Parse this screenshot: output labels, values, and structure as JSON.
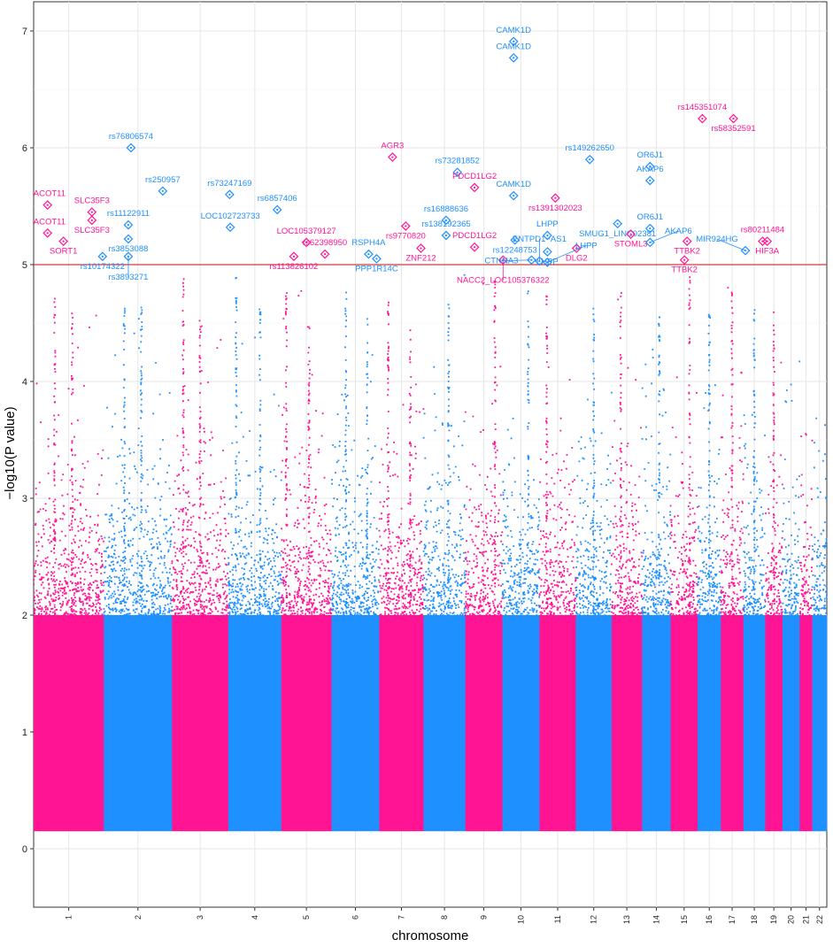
{
  "chart_data": {
    "type": "scatter",
    "title": "",
    "xlabel": "chromosome",
    "ylabel": "−log10(P value)",
    "ylim": [
      -0.5,
      7.25
    ],
    "yticks": [
      "0",
      "1",
      "2",
      "3",
      "4",
      "5",
      "6",
      "7"
    ],
    "grid": true,
    "significance_threshold": 5,
    "colors": {
      "odd_chromosome": "#ff1493",
      "even_chromosome": "#1e90ff",
      "threshold_line": "#d23c3c"
    },
    "chromosomes": [
      {
        "label": "1",
        "start": 0,
        "end": 1.06,
        "color": "#ff1493"
      },
      {
        "label": "2",
        "start": 1.06,
        "end": 2.09,
        "color": "#1e90ff"
      },
      {
        "label": "3",
        "start": 2.09,
        "end": 2.94,
        "color": "#ff1493"
      },
      {
        "label": "4",
        "start": 2.94,
        "end": 3.74,
        "color": "#1e90ff"
      },
      {
        "label": "5",
        "start": 3.74,
        "end": 4.5,
        "color": "#ff1493"
      },
      {
        "label": "6",
        "start": 4.5,
        "end": 5.22,
        "color": "#1e90ff"
      },
      {
        "label": "7",
        "start": 5.22,
        "end": 5.89,
        "color": "#ff1493"
      },
      {
        "label": "8",
        "start": 5.89,
        "end": 6.52,
        "color": "#1e90ff"
      },
      {
        "label": "9",
        "start": 6.52,
        "end": 7.08,
        "color": "#ff1493"
      },
      {
        "label": "10",
        "start": 7.08,
        "end": 7.64,
        "color": "#1e90ff"
      },
      {
        "label": "11",
        "start": 7.64,
        "end": 8.19,
        "color": "#ff1493"
      },
      {
        "label": "12",
        "start": 8.19,
        "end": 8.73,
        "color": "#1e90ff"
      },
      {
        "label": "13",
        "start": 8.73,
        "end": 9.19,
        "color": "#ff1493"
      },
      {
        "label": "14",
        "start": 9.19,
        "end": 9.62,
        "color": "#1e90ff"
      },
      {
        "label": "15",
        "start": 9.62,
        "end": 10.03,
        "color": "#ff1493"
      },
      {
        "label": "16",
        "start": 10.03,
        "end": 10.38,
        "color": "#1e90ff"
      },
      {
        "label": "17",
        "start": 10.38,
        "end": 10.72,
        "color": "#ff1493"
      },
      {
        "label": "18",
        "start": 10.72,
        "end": 11.05,
        "color": "#1e90ff"
      },
      {
        "label": "19",
        "start": 11.05,
        "end": 11.31,
        "color": "#ff1493"
      },
      {
        "label": "20",
        "start": 11.31,
        "end": 11.57,
        "color": "#1e90ff"
      },
      {
        "label": "21",
        "start": 11.57,
        "end": 11.76,
        "color": "#ff1493"
      },
      {
        "label": "22",
        "start": 11.76,
        "end": 11.98,
        "color": "#1e90ff"
      }
    ],
    "peaks": [
      {
        "chr": "1",
        "pos": 0.3,
        "y": 4.8
      },
      {
        "chr": "1",
        "pos": 0.55,
        "y": 4.6
      },
      {
        "chr": "2",
        "pos": 0.3,
        "y": 4.9
      },
      {
        "chr": "2",
        "pos": 0.55,
        "y": 4.7
      },
      {
        "chr": "3",
        "pos": 0.2,
        "y": 4.9
      },
      {
        "chr": "3",
        "pos": 0.5,
        "y": 4.6
      },
      {
        "chr": "4",
        "pos": 0.15,
        "y": 4.9
      },
      {
        "chr": "4",
        "pos": 0.6,
        "y": 4.7
      },
      {
        "chr": "5",
        "pos": 0.1,
        "y": 4.8
      },
      {
        "chr": "5",
        "pos": 0.55,
        "y": 4.5
      },
      {
        "chr": "6",
        "pos": 0.3,
        "y": 4.8
      },
      {
        "chr": "6",
        "pos": 0.75,
        "y": 4.6
      },
      {
        "chr": "7",
        "pos": 0.2,
        "y": 4.7
      },
      {
        "chr": "7",
        "pos": 0.7,
        "y": 4.5
      },
      {
        "chr": "8",
        "pos": 0.6,
        "y": 4.7
      },
      {
        "chr": "9",
        "pos": 0.8,
        "y": 4.9
      },
      {
        "chr": "10",
        "pos": 0.7,
        "y": 4.8
      },
      {
        "chr": "11",
        "pos": 0.2,
        "y": 4.9
      },
      {
        "chr": "12",
        "pos": 0.5,
        "y": 4.7
      },
      {
        "chr": "13",
        "pos": 0.3,
        "y": 4.9
      },
      {
        "chr": "14",
        "pos": 0.6,
        "y": 4.6
      },
      {
        "chr": "15",
        "pos": 0.7,
        "y": 4.9
      },
      {
        "chr": "16",
        "pos": 0.5,
        "y": 4.6
      },
      {
        "chr": "17",
        "pos": 0.5,
        "y": 4.8
      },
      {
        "chr": "18",
        "pos": 0.5,
        "y": 4.7
      },
      {
        "chr": "19",
        "pos": 0.5,
        "y": 4.6
      }
    ],
    "annotations": [
      {
        "label": "CAMK1D",
        "x": 7.25,
        "y": 6.91,
        "color": "#1e90ff"
      },
      {
        "label": "CAMK1D",
        "x": 7.25,
        "y": 6.77,
        "color": "#1e90ff"
      },
      {
        "label": "rs145351074",
        "x": 10.1,
        "y": 6.25,
        "color": "#ff1493"
      },
      {
        "label": "rs58352591",
        "x": 10.57,
        "y": 6.25,
        "color": "#ff1493"
      },
      {
        "label": "rs76806574",
        "x": 1.47,
        "y": 6.0,
        "color": "#1e90ff"
      },
      {
        "label": "AGR3",
        "x": 5.42,
        "y": 5.92,
        "color": "#ff1493"
      },
      {
        "label": "rs149262650",
        "x": 8.4,
        "y": 5.9,
        "color": "#1e90ff"
      },
      {
        "label": "OR6J1",
        "x": 9.31,
        "y": 5.84,
        "color": "#1e90ff"
      },
      {
        "label": "rs73281852",
        "x": 6.4,
        "y": 5.79,
        "color": "#1e90ff"
      },
      {
        "label": "AKAP6",
        "x": 9.31,
        "y": 5.72,
        "color": "#1e90ff"
      },
      {
        "label": "PDCD1LG2",
        "x": 6.66,
        "y": 5.66,
        "color": "#ff1493"
      },
      {
        "label": "rs250957",
        "x": 1.95,
        "y": 5.63,
        "color": "#1e90ff"
      },
      {
        "label": "rs73247169",
        "x": 2.96,
        "y": 5.6,
        "color": "#1e90ff"
      },
      {
        "label": "CAMK1D",
        "x": 7.25,
        "y": 5.59,
        "color": "#1e90ff"
      },
      {
        "label": "rs1391302023",
        "x": 7.88,
        "y": 5.57,
        "color": "#ff1493"
      },
      {
        "label": "ACOT11",
        "x": 0.21,
        "y": 5.51,
        "color": "#ff1493"
      },
      {
        "label": "rs6857406",
        "x": 3.68,
        "y": 5.47,
        "color": "#1e90ff"
      },
      {
        "label": "SLC35F3",
        "x": 0.88,
        "y": 5.45,
        "color": "#ff1493"
      },
      {
        "label": "SLC35F3",
        "x": 0.88,
        "y": 5.38,
        "color": "#ff1493"
      },
      {
        "label": "rs16888636",
        "x": 6.23,
        "y": 5.38,
        "color": "#1e90ff"
      },
      {
        "label": "rs11122911",
        "x": 1.43,
        "y": 5.34,
        "color": "#1e90ff"
      },
      {
        "label": "SMUG1_LINC02381",
        "x": 8.82,
        "y": 5.35,
        "color": "#1e90ff"
      },
      {
        "label": "rs9770820",
        "x": 5.62,
        "y": 5.33,
        "color": "#ff1493"
      },
      {
        "label": "LOC102723733",
        "x": 2.97,
        "y": 5.32,
        "color": "#1e90ff"
      },
      {
        "label": "OR6J1",
        "x": 9.31,
        "y": 5.31,
        "color": "#1e90ff"
      },
      {
        "label": "ACOT11",
        "x": 0.21,
        "y": 5.27,
        "color": "#ff1493"
      },
      {
        "label": "STOML3",
        "x": 9.02,
        "y": 5.26,
        "color": "#ff1493"
      },
      {
        "label": "rs138192365",
        "x": 6.23,
        "y": 5.25,
        "color": "#1e90ff"
      },
      {
        "label": "LHPP",
        "x": 7.76,
        "y": 5.25,
        "color": "#1e90ff"
      },
      {
        "label": "rs12248753",
        "x": 7.27,
        "y": 5.21,
        "color": "#1e90ff"
      },
      {
        "label": "rs3853088",
        "x": 1.43,
        "y": 5.22,
        "color": "#1e90ff"
      },
      {
        "label": "SORT1",
        "x": 0.45,
        "y": 5.2,
        "color": "#ff1493"
      },
      {
        "label": "LOC105379127",
        "x": 4.12,
        "y": 5.19,
        "color": "#ff1493"
      },
      {
        "label": "AKAP6",
        "x": 9.31,
        "y": 5.19,
        "color": "#1e90ff"
      },
      {
        "label": "TTBK2",
        "x": 9.87,
        "y": 5.2,
        "color": "#ff1493"
      },
      {
        "label": "rs80211484",
        "x": 11.01,
        "y": 5.2,
        "color": "#ff1493"
      },
      {
        "label": "HIF3A",
        "x": 11.08,
        "y": 5.2,
        "color": "#ff1493"
      },
      {
        "label": "ZNF212",
        "x": 5.85,
        "y": 5.14,
        "color": "#ff1493"
      },
      {
        "label": "DLG2",
        "x": 8.2,
        "y": 5.14,
        "color": "#ff1493"
      },
      {
        "label": "PDCD1LG2",
        "x": 6.66,
        "y": 5.15,
        "color": "#ff1493"
      },
      {
        "label": "MIR924HG",
        "x": 10.75,
        "y": 5.12,
        "color": "#1e90ff"
      },
      {
        "label": "LHPP",
        "x": 7.76,
        "y": 5.11,
        "color": "#1e90ff"
      },
      {
        "label": "rs62398950",
        "x": 4.4,
        "y": 5.09,
        "color": "#ff1493"
      },
      {
        "label": "RSPH4A",
        "x": 5.06,
        "y": 5.09,
        "color": "#1e90ff"
      },
      {
        "label": "rs113826102",
        "x": 3.93,
        "y": 5.07,
        "color": "#ff1493"
      },
      {
        "label": "rs10174322",
        "x": 1.04,
        "y": 5.07,
        "color": "#1e90ff"
      },
      {
        "label": "rs3893271",
        "x": 1.43,
        "y": 5.07,
        "color": "#1e90ff"
      },
      {
        "label": "PPP1R14C",
        "x": 5.18,
        "y": 5.05,
        "color": "#1e90ff"
      },
      {
        "label": "NACC2_LOC105376322",
        "x": 7.09,
        "y": 5.04,
        "color": "#ff1493"
      },
      {
        "label": "CTNNA3",
        "x": 7.52,
        "y": 5.04,
        "color": "#1e90ff"
      },
      {
        "label": "ENTPD1−AS1",
        "x": 7.64,
        "y": 5.03,
        "color": "#1e90ff"
      },
      {
        "label": "LHPP",
        "x": 7.76,
        "y": 5.02,
        "color": "#1e90ff"
      },
      {
        "label": "TTBK2",
        "x": 9.83,
        "y": 5.04,
        "color": "#ff1493"
      }
    ]
  }
}
